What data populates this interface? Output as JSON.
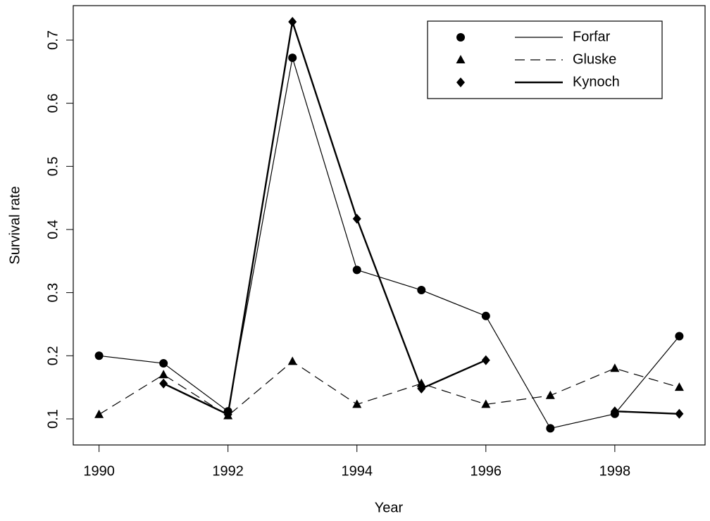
{
  "chart_data": {
    "type": "line",
    "x_label": "Year",
    "y_label": "Survival rate",
    "x": [
      1990,
      1991,
      1992,
      1993,
      1994,
      1995,
      1996,
      1997,
      1998,
      1999
    ],
    "series": [
      {
        "name": "Forfar",
        "color": "#000000",
        "marker": "circle",
        "line_style": "thin",
        "values": [
          0.2,
          0.188,
          0.112,
          0.672,
          0.336,
          0.304,
          0.263,
          0.085,
          0.108,
          0.231
        ]
      },
      {
        "name": "Gluske",
        "color": "#000000",
        "marker": "triangle",
        "line_style": "dashed",
        "values": [
          0.107,
          0.17,
          0.105,
          0.191,
          0.123,
          0.156,
          0.123,
          0.137,
          0.18,
          0.15
        ]
      },
      {
        "name": "Kynoch",
        "color": "#000000",
        "marker": "diamond",
        "line_style": "thick",
        "values": [
          null,
          0.156,
          0.107,
          0.729,
          0.417,
          0.148,
          0.193,
          null,
          0.112,
          0.108
        ]
      }
    ],
    "xlim": [
      1989.6,
      1999.4
    ],
    "ylim": [
      0.0587,
      0.7546
    ],
    "xticks": [
      1990,
      1992,
      1994,
      1996,
      1998
    ],
    "yticks": [
      0.1,
      0.2,
      0.3,
      0.4,
      0.5,
      0.6,
      0.7
    ],
    "grid": false,
    "legend_position": "top-right"
  }
}
